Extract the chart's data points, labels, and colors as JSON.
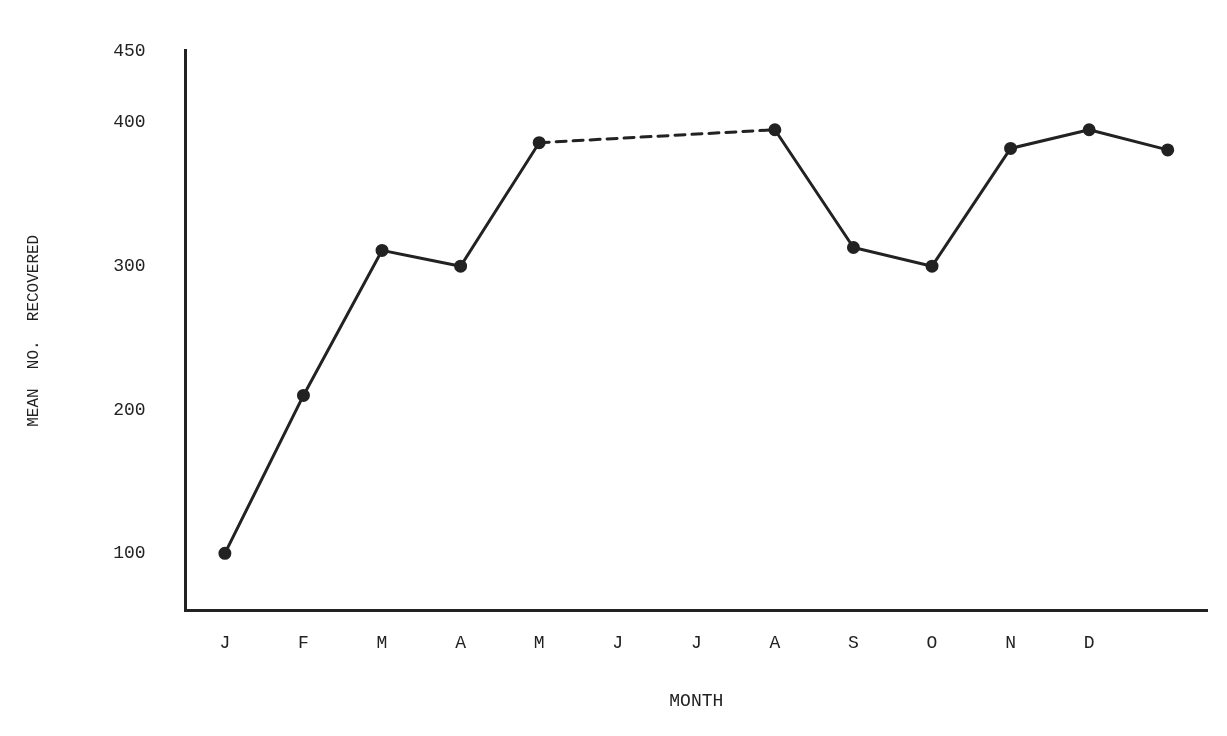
{
  "chart_data": {
    "type": "line",
    "xlabel": "MONTH",
    "ylabel": "MEAN  NO.  RECOVERED",
    "categories": [
      "J",
      "F",
      "M",
      "A",
      "M",
      "J",
      "J",
      "A",
      "S",
      "O",
      "N",
      "D",
      null
    ],
    "series": [
      {
        "color": "#222222",
        "values": [
          100,
          210,
          311,
          300,
          386,
          null,
          null,
          395,
          313,
          300,
          382,
          395,
          381
        ]
      }
    ],
    "marker": "circle",
    "line_style": "solid",
    "ylim": [
      60,
      450
    ],
    "yticks": [
      100,
      200,
      300,
      400,
      450
    ],
    "grid": false,
    "legend": false
  }
}
